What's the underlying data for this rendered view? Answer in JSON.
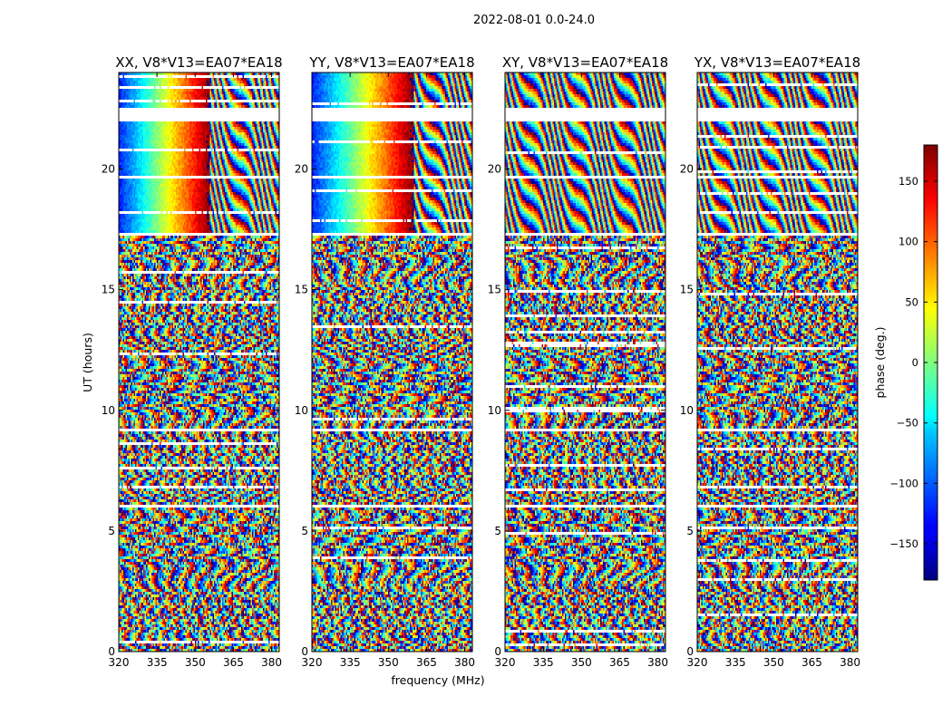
{
  "chart_data": {
    "type": "heatmap",
    "suptitle": "2022-08-01 0.0-24.0",
    "panels": [
      {
        "title": "XX, V8*V13=EA07*EA18",
        "baseline": "V8*V13",
        "antennas": "EA07*EA18",
        "polarization": "XX",
        "smooth_until_mhz": 356,
        "smooth_from_ut": 17.3
      },
      {
        "title": "YY, V8*V13=EA07*EA18",
        "baseline": "V8*V13",
        "antennas": "EA07*EA18",
        "polarization": "YY",
        "smooth_until_mhz": 360,
        "smooth_from_ut": 17.3
      },
      {
        "title": "XY, V8*V13=EA07*EA18",
        "baseline": "V8*V13",
        "antennas": "EA07*EA18",
        "polarization": "XY",
        "smooth_until_mhz": 0,
        "smooth_from_ut": 17.3
      },
      {
        "title": "YX, V8*V13=EA07*EA18",
        "baseline": "V8*V13",
        "antennas": "EA07*EA18",
        "polarization": "YX",
        "smooth_until_mhz": 0,
        "smooth_from_ut": 17.3
      }
    ],
    "xlabel": "frequency (MHz)",
    "ylabel": "UT (hours)",
    "xlim": [
      320,
      383
    ],
    "ylim": [
      0,
      24
    ],
    "xticks": [
      320,
      335,
      350,
      365,
      380
    ],
    "yticks": [
      0,
      5,
      10,
      15,
      20
    ],
    "flagged_ut_ranges": [
      [
        22.0,
        22.5
      ],
      [
        19.6,
        19.75
      ],
      [
        17.2,
        17.3
      ],
      [
        9.1,
        9.2
      ],
      [
        6.0,
        6.1
      ],
      [
        4.5,
        4.55
      ],
      [
        0.45,
        0.5
      ]
    ],
    "colorbar": {
      "label": "phase (deg.)",
      "range": [
        -180,
        180
      ],
      "ticks": [
        150,
        100,
        50,
        0,
        -50,
        -100,
        -150
      ],
      "tick_labels": [
        "150",
        "100",
        "50",
        "0",
        "−50",
        "−100",
        "−150"
      ],
      "colormap": "jet"
    }
  }
}
